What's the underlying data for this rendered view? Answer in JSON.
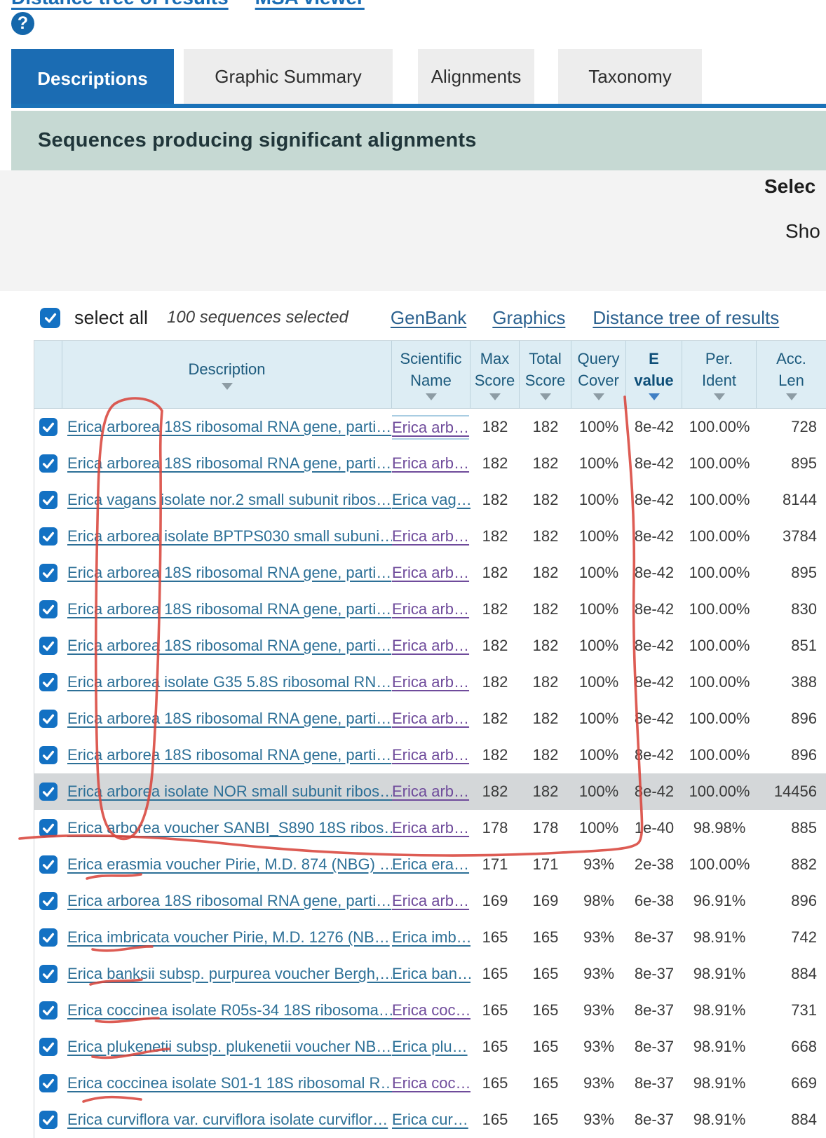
{
  "top": {
    "links": [
      {
        "label": "Distance tree of results"
      },
      {
        "label": "MSA viewer"
      }
    ],
    "help_glyph": "?"
  },
  "tabs": [
    {
      "label": "Descriptions",
      "active": true
    },
    {
      "label": "Graphic Summary",
      "active": false
    },
    {
      "label": "Alignments",
      "active": false
    },
    {
      "label": "Taxonomy",
      "active": false
    }
  ],
  "section": {
    "title": "Sequences producing significant alignments",
    "right_truncated_select": "Selec",
    "right_truncated_show": "Sho"
  },
  "toolbar": {
    "select_all_label": "select all",
    "selection_status": "100 sequences selected",
    "links": [
      {
        "label": "GenBank"
      },
      {
        "label": "Graphics"
      },
      {
        "label": "Distance tree of results"
      }
    ]
  },
  "table": {
    "columns": [
      {
        "name": "checkbox-column-header",
        "label_lines": [],
        "sortable": false,
        "sort_active": false,
        "bold": false
      },
      {
        "name": "description-column-header",
        "label_lines": [
          "Description"
        ],
        "sortable": true,
        "sort_active": false,
        "bold": false
      },
      {
        "name": "scientific-name-column-header",
        "label_lines": [
          "Scientific",
          "Name"
        ],
        "sortable": true,
        "sort_active": false,
        "bold": false
      },
      {
        "name": "max-score-column-header",
        "label_lines": [
          "Max",
          "Score"
        ],
        "sortable": true,
        "sort_active": false,
        "bold": false
      },
      {
        "name": "total-score-column-header",
        "label_lines": [
          "Total",
          "Score"
        ],
        "sortable": true,
        "sort_active": false,
        "bold": false
      },
      {
        "name": "query-cover-column-header",
        "label_lines": [
          "Query",
          "Cover"
        ],
        "sortable": true,
        "sort_active": false,
        "bold": false
      },
      {
        "name": "e-value-column-header",
        "label_lines": [
          "E",
          "value"
        ],
        "sortable": true,
        "sort_active": true,
        "bold": true
      },
      {
        "name": "per-ident-column-header",
        "label_lines": [
          "Per.",
          "Ident"
        ],
        "sortable": true,
        "sort_active": false,
        "bold": false
      },
      {
        "name": "acc-len-column-header",
        "label_lines": [
          "Acc.",
          "Len"
        ],
        "sortable": true,
        "sort_active": false,
        "bold": false
      }
    ],
    "rows": [
      {
        "description": "Erica arborea 18S ribosomal RNA gene, parti…",
        "scientific_name": "Erica arb…",
        "sci_visited": true,
        "sci_focus": true,
        "max_score": "182",
        "total_score": "182",
        "query_cover": "100%",
        "e_value": "8e-42",
        "per_ident": "100.00%",
        "acc_len": "728",
        "highlighted": false
      },
      {
        "description": "Erica arborea 18S ribosomal RNA gene, parti…",
        "scientific_name": "Erica arb…",
        "sci_visited": true,
        "sci_focus": false,
        "max_score": "182",
        "total_score": "182",
        "query_cover": "100%",
        "e_value": "8e-42",
        "per_ident": "100.00%",
        "acc_len": "895",
        "highlighted": false
      },
      {
        "description": "Erica vagans isolate nor.2 small subunit ribos…",
        "scientific_name": "Erica vag…",
        "sci_visited": false,
        "sci_focus": false,
        "max_score": "182",
        "total_score": "182",
        "query_cover": "100%",
        "e_value": "8e-42",
        "per_ident": "100.00%",
        "acc_len": "8144",
        "highlighted": false
      },
      {
        "description": "Erica arborea isolate BPTPS030 small subuni…",
        "scientific_name": "Erica arb…",
        "sci_visited": true,
        "sci_focus": false,
        "max_score": "182",
        "total_score": "182",
        "query_cover": "100%",
        "e_value": "8e-42",
        "per_ident": "100.00%",
        "acc_len": "3784",
        "highlighted": false
      },
      {
        "description": "Erica arborea 18S ribosomal RNA gene, parti…",
        "scientific_name": "Erica arb…",
        "sci_visited": true,
        "sci_focus": false,
        "max_score": "182",
        "total_score": "182",
        "query_cover": "100%",
        "e_value": "8e-42",
        "per_ident": "100.00%",
        "acc_len": "895",
        "highlighted": false
      },
      {
        "description": "Erica arborea 18S ribosomal RNA gene, parti…",
        "scientific_name": "Erica arb…",
        "sci_visited": true,
        "sci_focus": false,
        "max_score": "182",
        "total_score": "182",
        "query_cover": "100%",
        "e_value": "8e-42",
        "per_ident": "100.00%",
        "acc_len": "830",
        "highlighted": false
      },
      {
        "description": "Erica arborea 18S ribosomal RNA gene, parti…",
        "scientific_name": "Erica arb…",
        "sci_visited": true,
        "sci_focus": false,
        "max_score": "182",
        "total_score": "182",
        "query_cover": "100%",
        "e_value": "8e-42",
        "per_ident": "100.00%",
        "acc_len": "851",
        "highlighted": false
      },
      {
        "description": "Erica arborea isolate G35 5.8S ribosomal RN…",
        "scientific_name": "Erica arb…",
        "sci_visited": true,
        "sci_focus": false,
        "max_score": "182",
        "total_score": "182",
        "query_cover": "100%",
        "e_value": "8e-42",
        "per_ident": "100.00%",
        "acc_len": "388",
        "highlighted": false
      },
      {
        "description": "Erica arborea 18S ribosomal RNA gene, parti…",
        "scientific_name": "Erica arb…",
        "sci_visited": true,
        "sci_focus": false,
        "max_score": "182",
        "total_score": "182",
        "query_cover": "100%",
        "e_value": "8e-42",
        "per_ident": "100.00%",
        "acc_len": "896",
        "highlighted": false
      },
      {
        "description": "Erica arborea 18S ribosomal RNA gene, parti…",
        "scientific_name": "Erica arb…",
        "sci_visited": true,
        "sci_focus": false,
        "max_score": "182",
        "total_score": "182",
        "query_cover": "100%",
        "e_value": "8e-42",
        "per_ident": "100.00%",
        "acc_len": "896",
        "highlighted": false
      },
      {
        "description": "Erica arborea isolate NOR small subunit ribos…",
        "scientific_name": "Erica arb…",
        "sci_visited": true,
        "sci_focus": false,
        "max_score": "182",
        "total_score": "182",
        "query_cover": "100%",
        "e_value": "8e-42",
        "per_ident": "100.00%",
        "acc_len": "14456",
        "highlighted": true
      },
      {
        "description": "Erica arborea voucher SANBI_S890 18S ribos…",
        "scientific_name": "Erica arb…",
        "sci_visited": true,
        "sci_focus": false,
        "max_score": "178",
        "total_score": "178",
        "query_cover": "100%",
        "e_value": "1e-40",
        "per_ident": "98.98%",
        "acc_len": "885",
        "highlighted": false
      },
      {
        "description": "Erica erasmia voucher Pirie, M.D. 874 (NBG) …",
        "scientific_name": "Erica era…",
        "sci_visited": false,
        "sci_focus": false,
        "max_score": "171",
        "total_score": "171",
        "query_cover": "93%",
        "e_value": "2e-38",
        "per_ident": "100.00%",
        "acc_len": "882",
        "highlighted": false
      },
      {
        "description": "Erica arborea 18S ribosomal RNA gene, parti…",
        "scientific_name": "Erica arb…",
        "sci_visited": true,
        "sci_focus": false,
        "max_score": "169",
        "total_score": "169",
        "query_cover": "98%",
        "e_value": "6e-38",
        "per_ident": "96.91%",
        "acc_len": "896",
        "highlighted": false
      },
      {
        "description": "Erica imbricata voucher Pirie, M.D. 1276 (NB…",
        "scientific_name": "Erica imb…",
        "sci_visited": false,
        "sci_focus": false,
        "max_score": "165",
        "total_score": "165",
        "query_cover": "93%",
        "e_value": "8e-37",
        "per_ident": "98.91%",
        "acc_len": "742",
        "highlighted": false
      },
      {
        "description": "Erica banksii subsp. purpurea voucher Bergh,…",
        "scientific_name": "Erica ban…",
        "sci_visited": false,
        "sci_focus": false,
        "max_score": "165",
        "total_score": "165",
        "query_cover": "93%",
        "e_value": "8e-37",
        "per_ident": "98.91%",
        "acc_len": "884",
        "highlighted": false
      },
      {
        "description": "Erica coccinea isolate R05s-34 18S ribosoma…",
        "scientific_name": "Erica coc…",
        "sci_visited": true,
        "sci_focus": false,
        "max_score": "165",
        "total_score": "165",
        "query_cover": "93%",
        "e_value": "8e-37",
        "per_ident": "98.91%",
        "acc_len": "731",
        "highlighted": false
      },
      {
        "description": "Erica plukenetii subsp. plukenetii voucher NB…",
        "scientific_name": "Erica plu…",
        "sci_visited": false,
        "sci_focus": false,
        "max_score": "165",
        "total_score": "165",
        "query_cover": "93%",
        "e_value": "8e-37",
        "per_ident": "98.91%",
        "acc_len": "668",
        "highlighted": false
      },
      {
        "description": "Erica coccinea isolate S01-1 18S ribosomal R…",
        "scientific_name": "Erica coc…",
        "sci_visited": true,
        "sci_focus": false,
        "max_score": "165",
        "total_score": "165",
        "query_cover": "93%",
        "e_value": "8e-37",
        "per_ident": "98.91%",
        "acc_len": "669",
        "highlighted": false
      },
      {
        "description": "Erica curviflora var. curviflora isolate curviflor…",
        "scientific_name": "Erica cur…",
        "sci_visited": false,
        "sci_focus": false,
        "max_score": "165",
        "total_score": "165",
        "query_cover": "93%",
        "e_value": "8e-37",
        "per_ident": "98.91%",
        "acc_len": "884",
        "highlighted": false
      }
    ]
  },
  "annotations": {
    "pen_color": "#d8453c",
    "items": [
      "hand-drawn red loop circling the word 'arborea' down rows 1-12",
      "hand-drawn red vertical line along the E value column edge curving into a horizontal line below row 12",
      "red underline under 'erasmia'",
      "red underline under 'imbricata'",
      "red underline under 'banksii'",
      "red underline under 'coccinea' (row 17)",
      "red underline under 'plukenetii'",
      "red underline under 'coccinea' (row 19)"
    ]
  },
  "colors": {
    "accent_blue": "#1b6cb3",
    "band_green": "#c6d9d3",
    "header_bg": "#ddedf4",
    "link_blue": "#2d7097",
    "visited_purple": "#6f4b9b",
    "toolbar_link_blue": "#2b618f",
    "checkbox_blue": "#1371c3",
    "highlight_row_gray": "#d4d7d9",
    "pen_red": "#d8453c"
  }
}
